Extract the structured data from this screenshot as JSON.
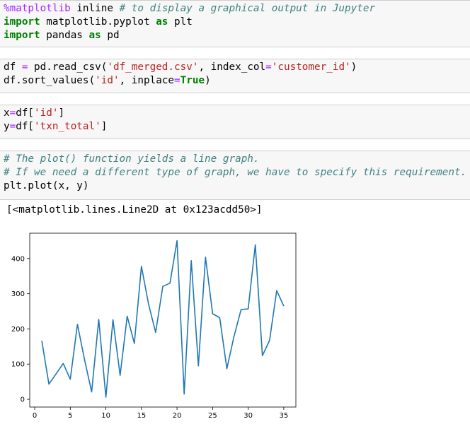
{
  "cells": [
    {
      "lines": [
        [
          {
            "t": "%matplotlib",
            "c": "magic"
          },
          {
            "t": " inline "
          },
          {
            "t": "# to display a graphical output in Jupyter",
            "c": "cm"
          }
        ],
        [
          {
            "t": "import",
            "c": "kw"
          },
          {
            "t": " matplotlib.pyplot "
          },
          {
            "t": "as",
            "c": "kw"
          },
          {
            "t": " plt"
          }
        ],
        [
          {
            "t": "import",
            "c": "kw"
          },
          {
            "t": " pandas "
          },
          {
            "t": "as",
            "c": "kw"
          },
          {
            "t": " pd"
          }
        ]
      ]
    },
    {
      "lines": [
        [
          {
            "t": "df "
          },
          {
            "t": "=",
            "c": "op"
          },
          {
            "t": " pd.read_csv("
          },
          {
            "t": "'df_merged.csv'",
            "c": "str"
          },
          {
            "t": ", index_col"
          },
          {
            "t": "=",
            "c": "op"
          },
          {
            "t": "'customer_id'",
            "c": "str"
          },
          {
            "t": ")"
          }
        ],
        [
          {
            "t": "df.sort_values("
          },
          {
            "t": "'id'",
            "c": "str"
          },
          {
            "t": ", inplace"
          },
          {
            "t": "=",
            "c": "op"
          },
          {
            "t": "True",
            "c": "kw"
          },
          {
            "t": ")"
          }
        ]
      ]
    },
    {
      "lines": [
        [
          {
            "t": "x"
          },
          {
            "t": "=",
            "c": "op"
          },
          {
            "t": "df["
          },
          {
            "t": "'id'",
            "c": "str"
          },
          {
            "t": "]"
          }
        ],
        [
          {
            "t": "y"
          },
          {
            "t": "=",
            "c": "op"
          },
          {
            "t": "df["
          },
          {
            "t": "'txn_total'",
            "c": "str"
          },
          {
            "t": "]"
          }
        ]
      ]
    },
    {
      "lines": [
        [
          {
            "t": "# The plot() function yields a line graph.",
            "c": "cm"
          }
        ],
        [
          {
            "t": "# If we need a different type of graph, we have to specify this requirement.",
            "c": "cm"
          }
        ],
        [
          {
            "t": "plt.plot(x, y)"
          }
        ]
      ]
    }
  ],
  "output_text": "[<matplotlib.lines.Line2D at 0x123acdd50>]",
  "colors": {
    "line": "#1f77b4",
    "cell_bg": "#f7f7f7",
    "cell_border": "#cfcfcf"
  },
  "chart_data": {
    "type": "line",
    "title": "",
    "xlabel": "",
    "ylabel": "",
    "xlim": [
      -0.7,
      36.7
    ],
    "ylim": [
      -22,
      472
    ],
    "xticks": [
      0,
      5,
      10,
      15,
      20,
      25,
      30,
      35
    ],
    "yticks": [
      0,
      100,
      200,
      300,
      400
    ],
    "grid": false,
    "x": [
      1,
      2,
      3,
      4,
      5,
      6,
      7,
      8,
      9,
      10,
      11,
      12,
      13,
      14,
      15,
      16,
      17,
      18,
      19,
      20,
      21,
      22,
      23,
      24,
      25,
      26,
      27,
      28,
      29,
      30,
      31,
      32,
      33,
      34,
      35
    ],
    "y": [
      166,
      43,
      72,
      102,
      57,
      213,
      113,
      21,
      227,
      6,
      226,
      68,
      236,
      159,
      378,
      270,
      190,
      321,
      330,
      451,
      15,
      394,
      95,
      404,
      243,
      232,
      87,
      178,
      255,
      257,
      439,
      124,
      167,
      309,
      265
    ]
  }
}
